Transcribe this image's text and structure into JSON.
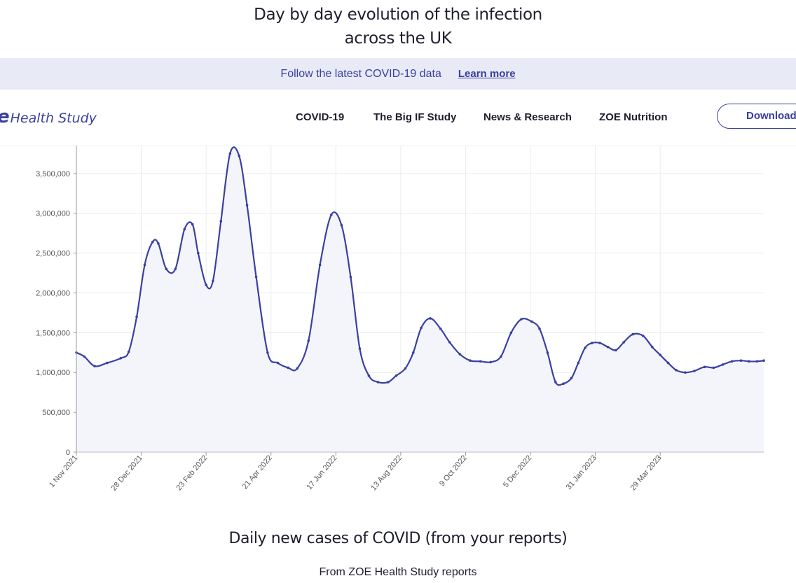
{
  "page": {
    "title_line1": "Day by day evolution of the infection",
    "title_line2": "across the UK"
  },
  "banner": {
    "text": "Follow the latest COVID-19 data",
    "link": "Learn more"
  },
  "nav": {
    "logo_mark": "e",
    "logo_text": "Health Study",
    "items": [
      "COVID-19",
      "The Big IF Study",
      "News & Research",
      "ZOE Nutrition"
    ],
    "download": "Download"
  },
  "colors": {
    "accent": "#3a40a0",
    "area_fill": "#f4f5fb",
    "banner_bg": "#e8eaf5"
  },
  "chart_data": {
    "type": "area",
    "title": "Daily new cases of COVID (from your reports)",
    "subtitle": "From ZOE Health Study reports",
    "ylim": [
      0,
      3850000
    ],
    "yticks": [
      0,
      500000,
      1000000,
      1500000,
      2000000,
      2500000,
      3000000,
      3500000
    ],
    "ytick_labels": [
      "0",
      "500,000",
      "1,000,000",
      "1,500,000",
      "2,000,000",
      "2,500,000",
      "3,000,000",
      "3,500,000"
    ],
    "xlim": [
      "2021-11-01",
      "2023-06-28"
    ],
    "xticks": [
      "2021-11-01",
      "2021-12-28",
      "2022-02-23",
      "2022-04-21",
      "2022-06-17",
      "2022-08-13",
      "2022-10-09",
      "2022-12-05",
      "2023-01-31",
      "2023-03-29"
    ],
    "xtick_labels": [
      "1 Nov 2021",
      "28 Dec 2021",
      "23 Feb 2022",
      "21 Apr 2022",
      "17 Jun 2022",
      "13 Aug 2022",
      "9 Oct 2022",
      "5 Dec 2022",
      "31 Jan 2023",
      "29 Mar 2023"
    ],
    "grid": true,
    "series": [
      {
        "x": [
          "2021-11-01",
          "2021-11-08",
          "2021-11-17",
          "2021-11-28",
          "2021-12-10",
          "2021-12-17",
          "2021-12-24",
          "2021-12-31",
          "2022-01-07",
          "2022-01-12",
          "2022-01-19",
          "2022-01-27",
          "2022-02-04",
          "2022-02-11",
          "2022-02-16",
          "2022-02-23",
          "2022-03-01",
          "2022-03-08",
          "2022-03-16",
          "2022-03-24",
          "2022-03-31",
          "2022-04-08",
          "2022-04-18",
          "2022-04-27",
          "2022-05-06",
          "2022-05-14",
          "2022-05-24",
          "2022-06-03",
          "2022-06-13",
          "2022-06-22",
          "2022-06-30",
          "2022-07-08",
          "2022-07-16",
          "2022-07-24",
          "2022-08-02",
          "2022-08-09",
          "2022-08-17",
          "2022-08-24",
          "2022-08-31",
          "2022-09-08",
          "2022-09-17",
          "2022-09-25",
          "2022-10-04",
          "2022-10-13",
          "2022-10-22",
          "2022-10-31",
          "2022-11-09",
          "2022-11-18",
          "2022-11-27",
          "2022-12-06",
          "2022-12-13",
          "2022-12-20",
          "2022-12-27",
          "2023-01-03",
          "2023-01-10",
          "2023-01-16",
          "2023-01-22",
          "2023-01-28",
          "2023-02-04",
          "2023-02-11",
          "2023-02-18",
          "2023-02-25",
          "2023-03-05",
          "2023-03-14",
          "2023-03-22",
          "2023-03-29",
          "2023-04-05",
          "2023-04-12",
          "2023-04-20",
          "2023-04-28",
          "2023-05-07",
          "2023-05-15",
          "2023-05-23",
          "2023-05-31",
          "2023-06-08",
          "2023-06-15",
          "2023-06-22",
          "2023-06-28"
        ],
        "y": [
          1250000,
          1200000,
          1080000,
          1120000,
          1180000,
          1260000,
          1700000,
          2350000,
          2640000,
          2620000,
          2300000,
          2300000,
          2800000,
          2860000,
          2500000,
          2100000,
          2150000,
          2900000,
          3750000,
          3720000,
          3100000,
          2200000,
          1250000,
          1120000,
          1060000,
          1050000,
          1400000,
          2350000,
          2980000,
          2850000,
          2200000,
          1300000,
          960000,
          880000,
          880000,
          960000,
          1050000,
          1250000,
          1560000,
          1680000,
          1550000,
          1380000,
          1230000,
          1150000,
          1140000,
          1130000,
          1200000,
          1500000,
          1670000,
          1640000,
          1550000,
          1250000,
          880000,
          860000,
          930000,
          1120000,
          1310000,
          1370000,
          1370000,
          1320000,
          1280000,
          1380000,
          1480000,
          1460000,
          1320000,
          1220000,
          1120000,
          1030000,
          1000000,
          1020000,
          1070000,
          1060000,
          1100000,
          1140000,
          1150000,
          1140000,
          1140000,
          1150000
        ]
      }
    ]
  }
}
